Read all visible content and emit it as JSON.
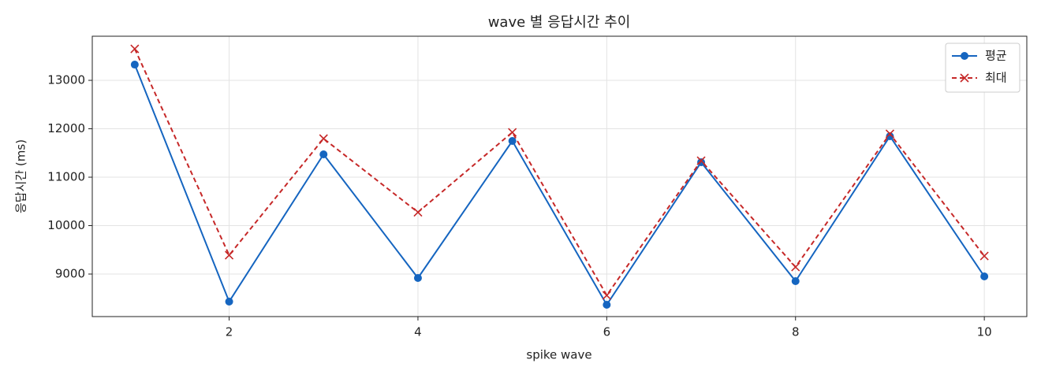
{
  "chart_data": {
    "type": "line",
    "title": "wave 별 응답시간 추이",
    "x_label": "spike wave",
    "y_label": "응답시간 (ms)",
    "x": [
      1,
      2,
      3,
      4,
      5,
      6,
      7,
      8,
      9,
      10
    ],
    "series": [
      {
        "name": "평균",
        "color": "#1565c0",
        "linestyle": "solid",
        "marker": "circle",
        "values": [
          13325,
          8431,
          11472,
          8919,
          11748,
          8366,
          11309,
          8854,
          11846,
          8951
        ]
      },
      {
        "name": "최대",
        "color": "#c62828",
        "linestyle": "dashed",
        "marker": "x",
        "values": [
          13650,
          9390,
          11797,
          10276,
          11927,
          8561,
          11341,
          9146,
          11895,
          9374
        ]
      }
    ],
    "xlim": [
      0.55,
      10.45
    ],
    "xticks": [
      2,
      4,
      6,
      8,
      10
    ],
    "ylim": [
      8122,
      13911
    ],
    "yticks": [
      9000,
      10000,
      11000,
      12000,
      13000
    ],
    "grid": true,
    "legend": "upper-right"
  }
}
